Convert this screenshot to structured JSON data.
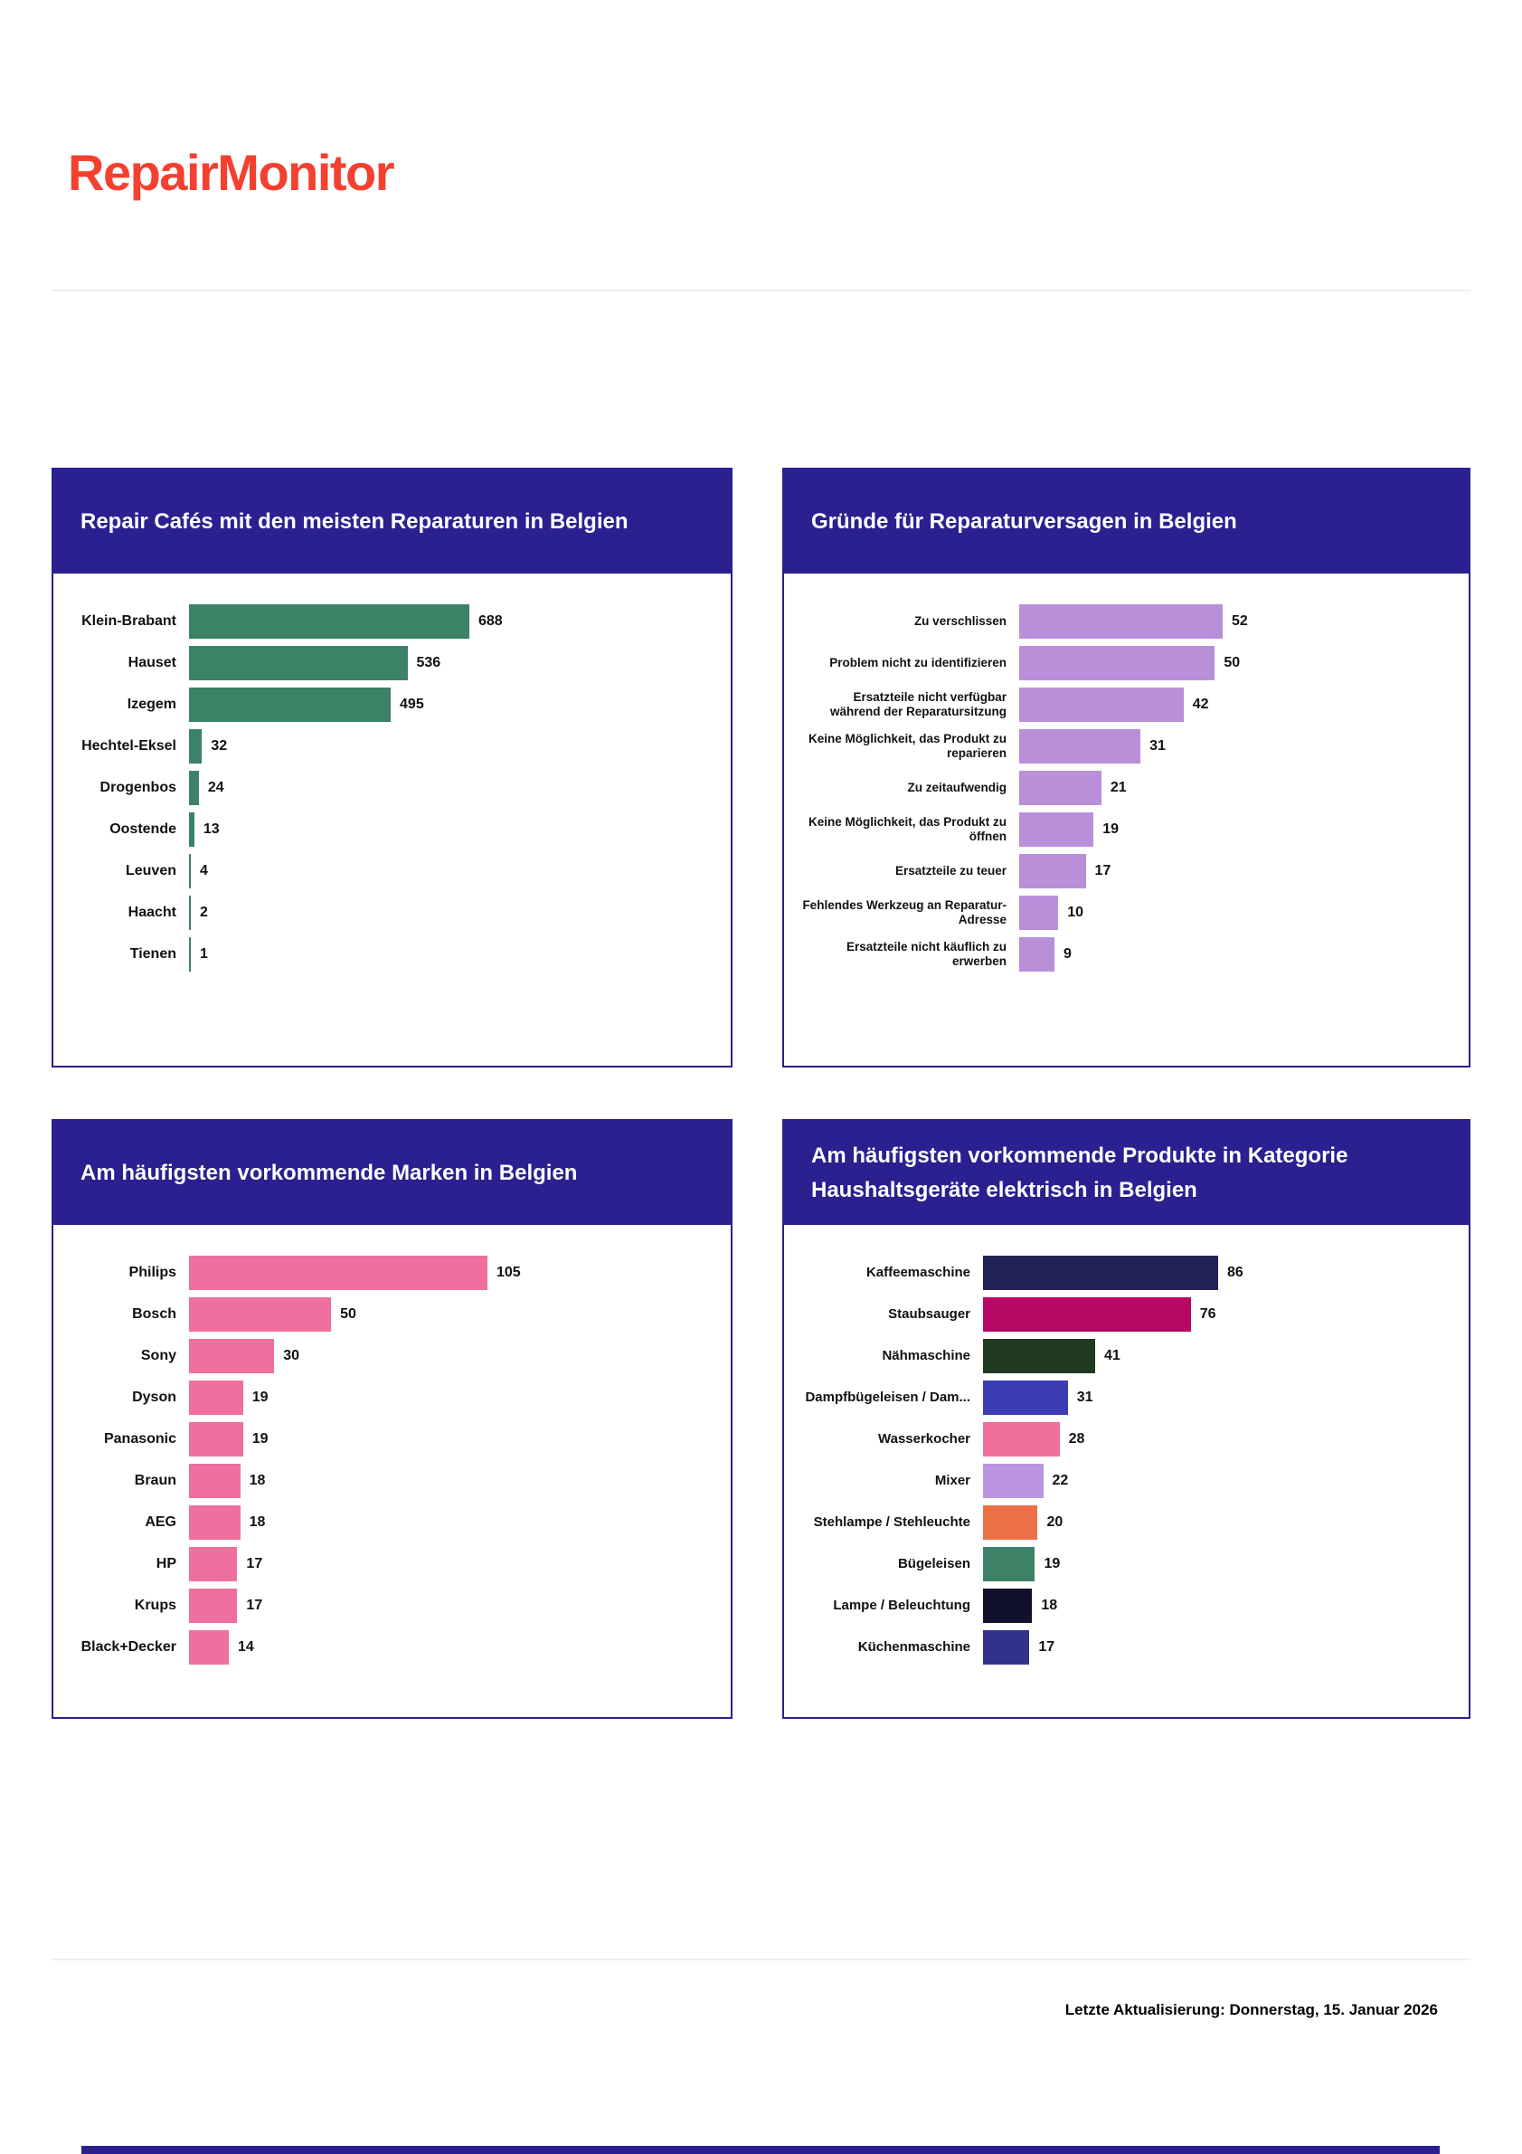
{
  "page": {
    "logo": "RepairMonitor",
    "footer_note": "Letzte Aktualisierung: Donnerstag, 15. Januar 2026"
  },
  "colors": {
    "brand_red": "#F4402F",
    "panel_navy": "#2A2090",
    "green_bar": "#3B8266",
    "purple_bar": "#BA8FD9",
    "pink_bar": "#EF6F9E"
  },
  "chart_data": [
    {
      "type": "bar",
      "orientation": "horizontal",
      "title": "Repair Cafés mit den meisten Reparaturen in Belgien",
      "categories": [
        "Klein-Brabant",
        "Hauset",
        "Izegem",
        "Hechtel-Eksel",
        "Drogenbos",
        "Oostende",
        "Leuven",
        "Haacht",
        "Tienen"
      ],
      "values": [
        688,
        536,
        495,
        32,
        24,
        13,
        4,
        2,
        1
      ],
      "bar_color": "#3B8266",
      "value_labels": true,
      "grid": false,
      "legend": false
    },
    {
      "type": "bar",
      "orientation": "horizontal",
      "title": "Gründe für Reparaturversagen in Belgien",
      "categories": [
        "Zu verschlissen",
        "Problem nicht zu identifizieren",
        "Ersatzteile nicht verfügbar während der Reparatursitzung",
        "Keine Möglichkeit, das Produkt zu reparieren",
        "Zu zeitaufwendig",
        "Keine Möglichkeit, das Produkt zu öffnen",
        "Ersatzteile zu teuer",
        "Fehlendes Werkzeug an Reparatur-Adresse",
        "Ersatzteile nicht käuflich zu erwerben"
      ],
      "values": [
        52,
        50,
        42,
        31,
        21,
        19,
        17,
        10,
        9
      ],
      "bar_color": "#BA8FD9",
      "value_labels": true,
      "grid": false,
      "legend": false
    },
    {
      "type": "bar",
      "orientation": "horizontal",
      "title": "Am häufigsten vorkommende Marken in Belgien",
      "categories": [
        "Philips",
        "Bosch",
        "Sony",
        "Dyson",
        "Panasonic",
        "Braun",
        "AEG",
        "HP",
        "Krups",
        "Black+Decker"
      ],
      "values": [
        105,
        50,
        30,
        19,
        19,
        18,
        18,
        17,
        17,
        14
      ],
      "bar_color": "#EF6F9E",
      "value_labels": true,
      "grid": false,
      "legend": false
    },
    {
      "type": "bar",
      "orientation": "horizontal",
      "title": "Am häufigsten vorkommende Produkte in Kategorie Haushaltsgeräte elektrisch in Belgien",
      "categories": [
        "Kaffeemaschine",
        "Staubsauger",
        "Nähmaschine",
        "Dampfbügeleisen / Dam...",
        "Wasserkocher",
        "Mixer",
        "Stehlampe / Stehleuchte",
        "Bügeleisen",
        "Lampe / Beleuchtung",
        "Küchenmaschine"
      ],
      "values": [
        86,
        76,
        41,
        31,
        28,
        22,
        20,
        19,
        18,
        17
      ],
      "bar_colors": [
        "#232358",
        "#B80866",
        "#20391F",
        "#3C3CB4",
        "#F0709A",
        "#BB95E0",
        "#EC6F45",
        "#3D8266",
        "#11112E",
        "#32328C"
      ],
      "value_labels": true,
      "grid": false,
      "legend": false
    }
  ]
}
